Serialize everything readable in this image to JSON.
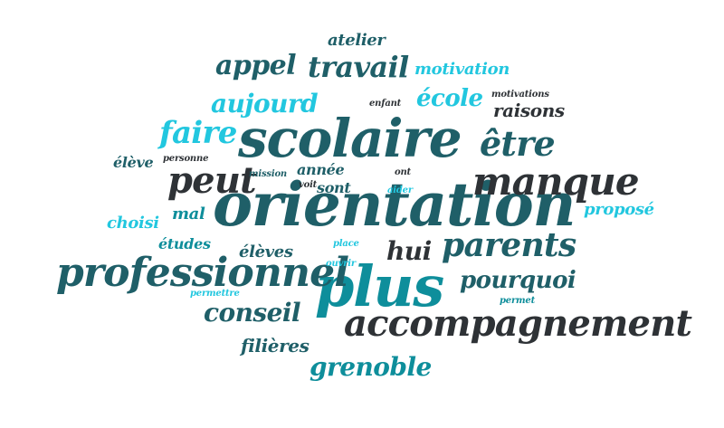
{
  "palette": {
    "dark_teal": "#1f5f68",
    "teal": "#0e8e9b",
    "cyan": "#22c7df",
    "charcoal": "#2e3236"
  },
  "words": [
    {
      "text": "orientation",
      "color": "#1f5f68"
    },
    {
      "text": "scolaire",
      "color": "#1f5f68"
    },
    {
      "text": "plus",
      "color": "#0e8e9b"
    },
    {
      "text": "professionnel",
      "color": "#1f5f68"
    },
    {
      "text": "accompagnement",
      "color": "#2e3236"
    },
    {
      "text": "manque",
      "color": "#2e3236"
    },
    {
      "text": "parents",
      "color": "#1f5f68"
    },
    {
      "text": "peut",
      "color": "#2e3236"
    },
    {
      "text": "être",
      "color": "#1f5f68"
    },
    {
      "text": "travail",
      "color": "#1f5f68"
    },
    {
      "text": "appel",
      "color": "#1f5f68"
    },
    {
      "text": "aujourd",
      "color": "#22c7df"
    },
    {
      "text": "faire",
      "color": "#22c7df"
    },
    {
      "text": "école",
      "color": "#22c7df"
    },
    {
      "text": "conseil",
      "color": "#1f5f68"
    },
    {
      "text": "grenoble",
      "color": "#0e8e9b"
    },
    {
      "text": "pourquoi",
      "color": "#1f5f68"
    },
    {
      "text": "hui",
      "color": "#2e3236"
    },
    {
      "text": "raisons",
      "color": "#2e3236"
    },
    {
      "text": "motivation",
      "color": "#22c7df"
    },
    {
      "text": "atelier",
      "color": "#1f5f68"
    },
    {
      "text": "filières",
      "color": "#1f5f68"
    },
    {
      "text": "élèves",
      "color": "#1f5f68"
    },
    {
      "text": "études",
      "color": "#0e8e9b"
    },
    {
      "text": "choisi",
      "color": "#22c7df"
    },
    {
      "text": "mal",
      "color": "#0e8e9b"
    },
    {
      "text": "proposé",
      "color": "#22c7df"
    },
    {
      "text": "sont",
      "color": "#1f5f68"
    },
    {
      "text": "année",
      "color": "#1f5f68"
    },
    {
      "text": "élève",
      "color": "#1f5f68"
    },
    {
      "text": "personne",
      "color": "#2e3236"
    },
    {
      "text": "mission",
      "color": "#1f5f68"
    },
    {
      "text": "enfant",
      "color": "#2e3236"
    },
    {
      "text": "motivations",
      "color": "#2e3236"
    },
    {
      "text": "ont",
      "color": "#2e3236"
    },
    {
      "text": "voit",
      "color": "#2e3236"
    },
    {
      "text": "aider",
      "color": "#22c7df"
    },
    {
      "text": "place",
      "color": "#22c7df"
    },
    {
      "text": "ouvrir",
      "color": "#22c7df"
    },
    {
      "text": "permettre",
      "color": "#22c7df"
    },
    {
      "text": "permet",
      "color": "#0e8e9b"
    }
  ]
}
